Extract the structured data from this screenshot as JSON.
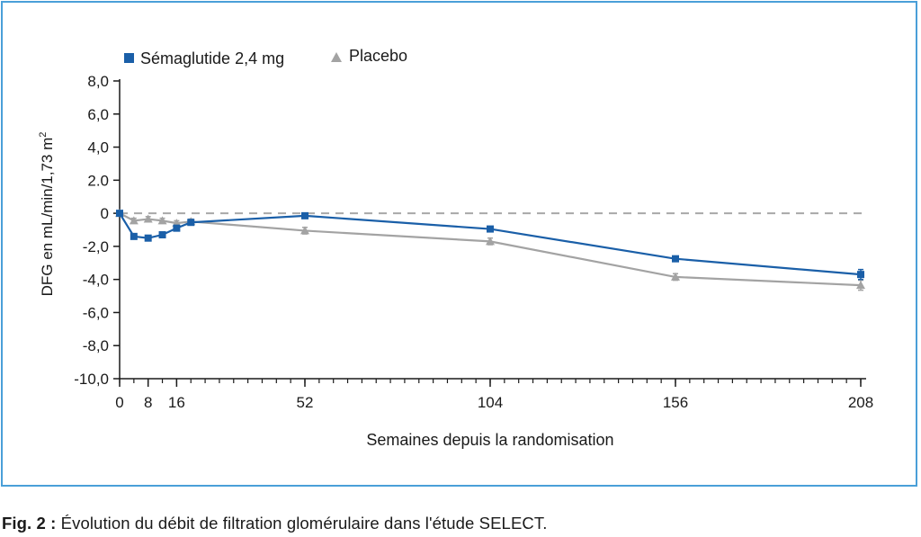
{
  "chart_data": {
    "type": "line",
    "title": "",
    "xlabel": "Semaines depuis la randomisation",
    "ylabel": "DFG en mL/min/1,73 m",
    "ylabel_superscript": "2",
    "xlim": [
      0,
      208
    ],
    "ylim": [
      -10,
      8
    ],
    "x_ticks": [
      0,
      8,
      16,
      52,
      104,
      156,
      208
    ],
    "x_tick_labels": [
      "0",
      "8",
      "16",
      "52",
      "104",
      "156",
      "208"
    ],
    "y_ticks": [
      8,
      6,
      4,
      2,
      0,
      -2,
      -4,
      -6,
      -8,
      -10
    ],
    "y_tick_labels": [
      "8,0",
      "6,0",
      "4,0",
      "2.0",
      "0",
      "-2,0",
      "-4,0",
      "-6,0",
      "-8,0",
      "-10,0"
    ],
    "reference_line": {
      "y": 0,
      "style": "dashed"
    },
    "legend_position": "top-left",
    "series": [
      {
        "name": "Sémaglutide 2,4 mg",
        "color": "#1a5fa8",
        "marker": "square",
        "x": [
          0,
          4,
          8,
          12,
          16,
          20,
          52,
          104,
          156,
          208
        ],
        "y": [
          0.0,
          -1.4,
          -1.5,
          -1.3,
          -0.9,
          -0.55,
          -0.15,
          -0.95,
          -2.75,
          -3.7
        ],
        "err": [
          0,
          0.1,
          0.1,
          0.1,
          0.12,
          0.12,
          0.12,
          0.15,
          0.15,
          0.3
        ]
      },
      {
        "name": "Placebo",
        "color": "#a3a3a3",
        "marker": "triangle",
        "x": [
          0,
          4,
          8,
          12,
          16,
          20,
          52,
          104,
          156,
          208
        ],
        "y": [
          0.0,
          -0.45,
          -0.35,
          -0.45,
          -0.6,
          -0.5,
          -1.05,
          -1.7,
          -3.85,
          -4.35
        ],
        "err": [
          0,
          0.15,
          0.15,
          0.15,
          0.15,
          0.15,
          0.2,
          0.2,
          0.2,
          0.3
        ]
      }
    ]
  },
  "caption": {
    "label": "Fig. 2 :",
    "text": " Évolution du débit de filtration glomérulaire dans l'étude SELECT."
  }
}
